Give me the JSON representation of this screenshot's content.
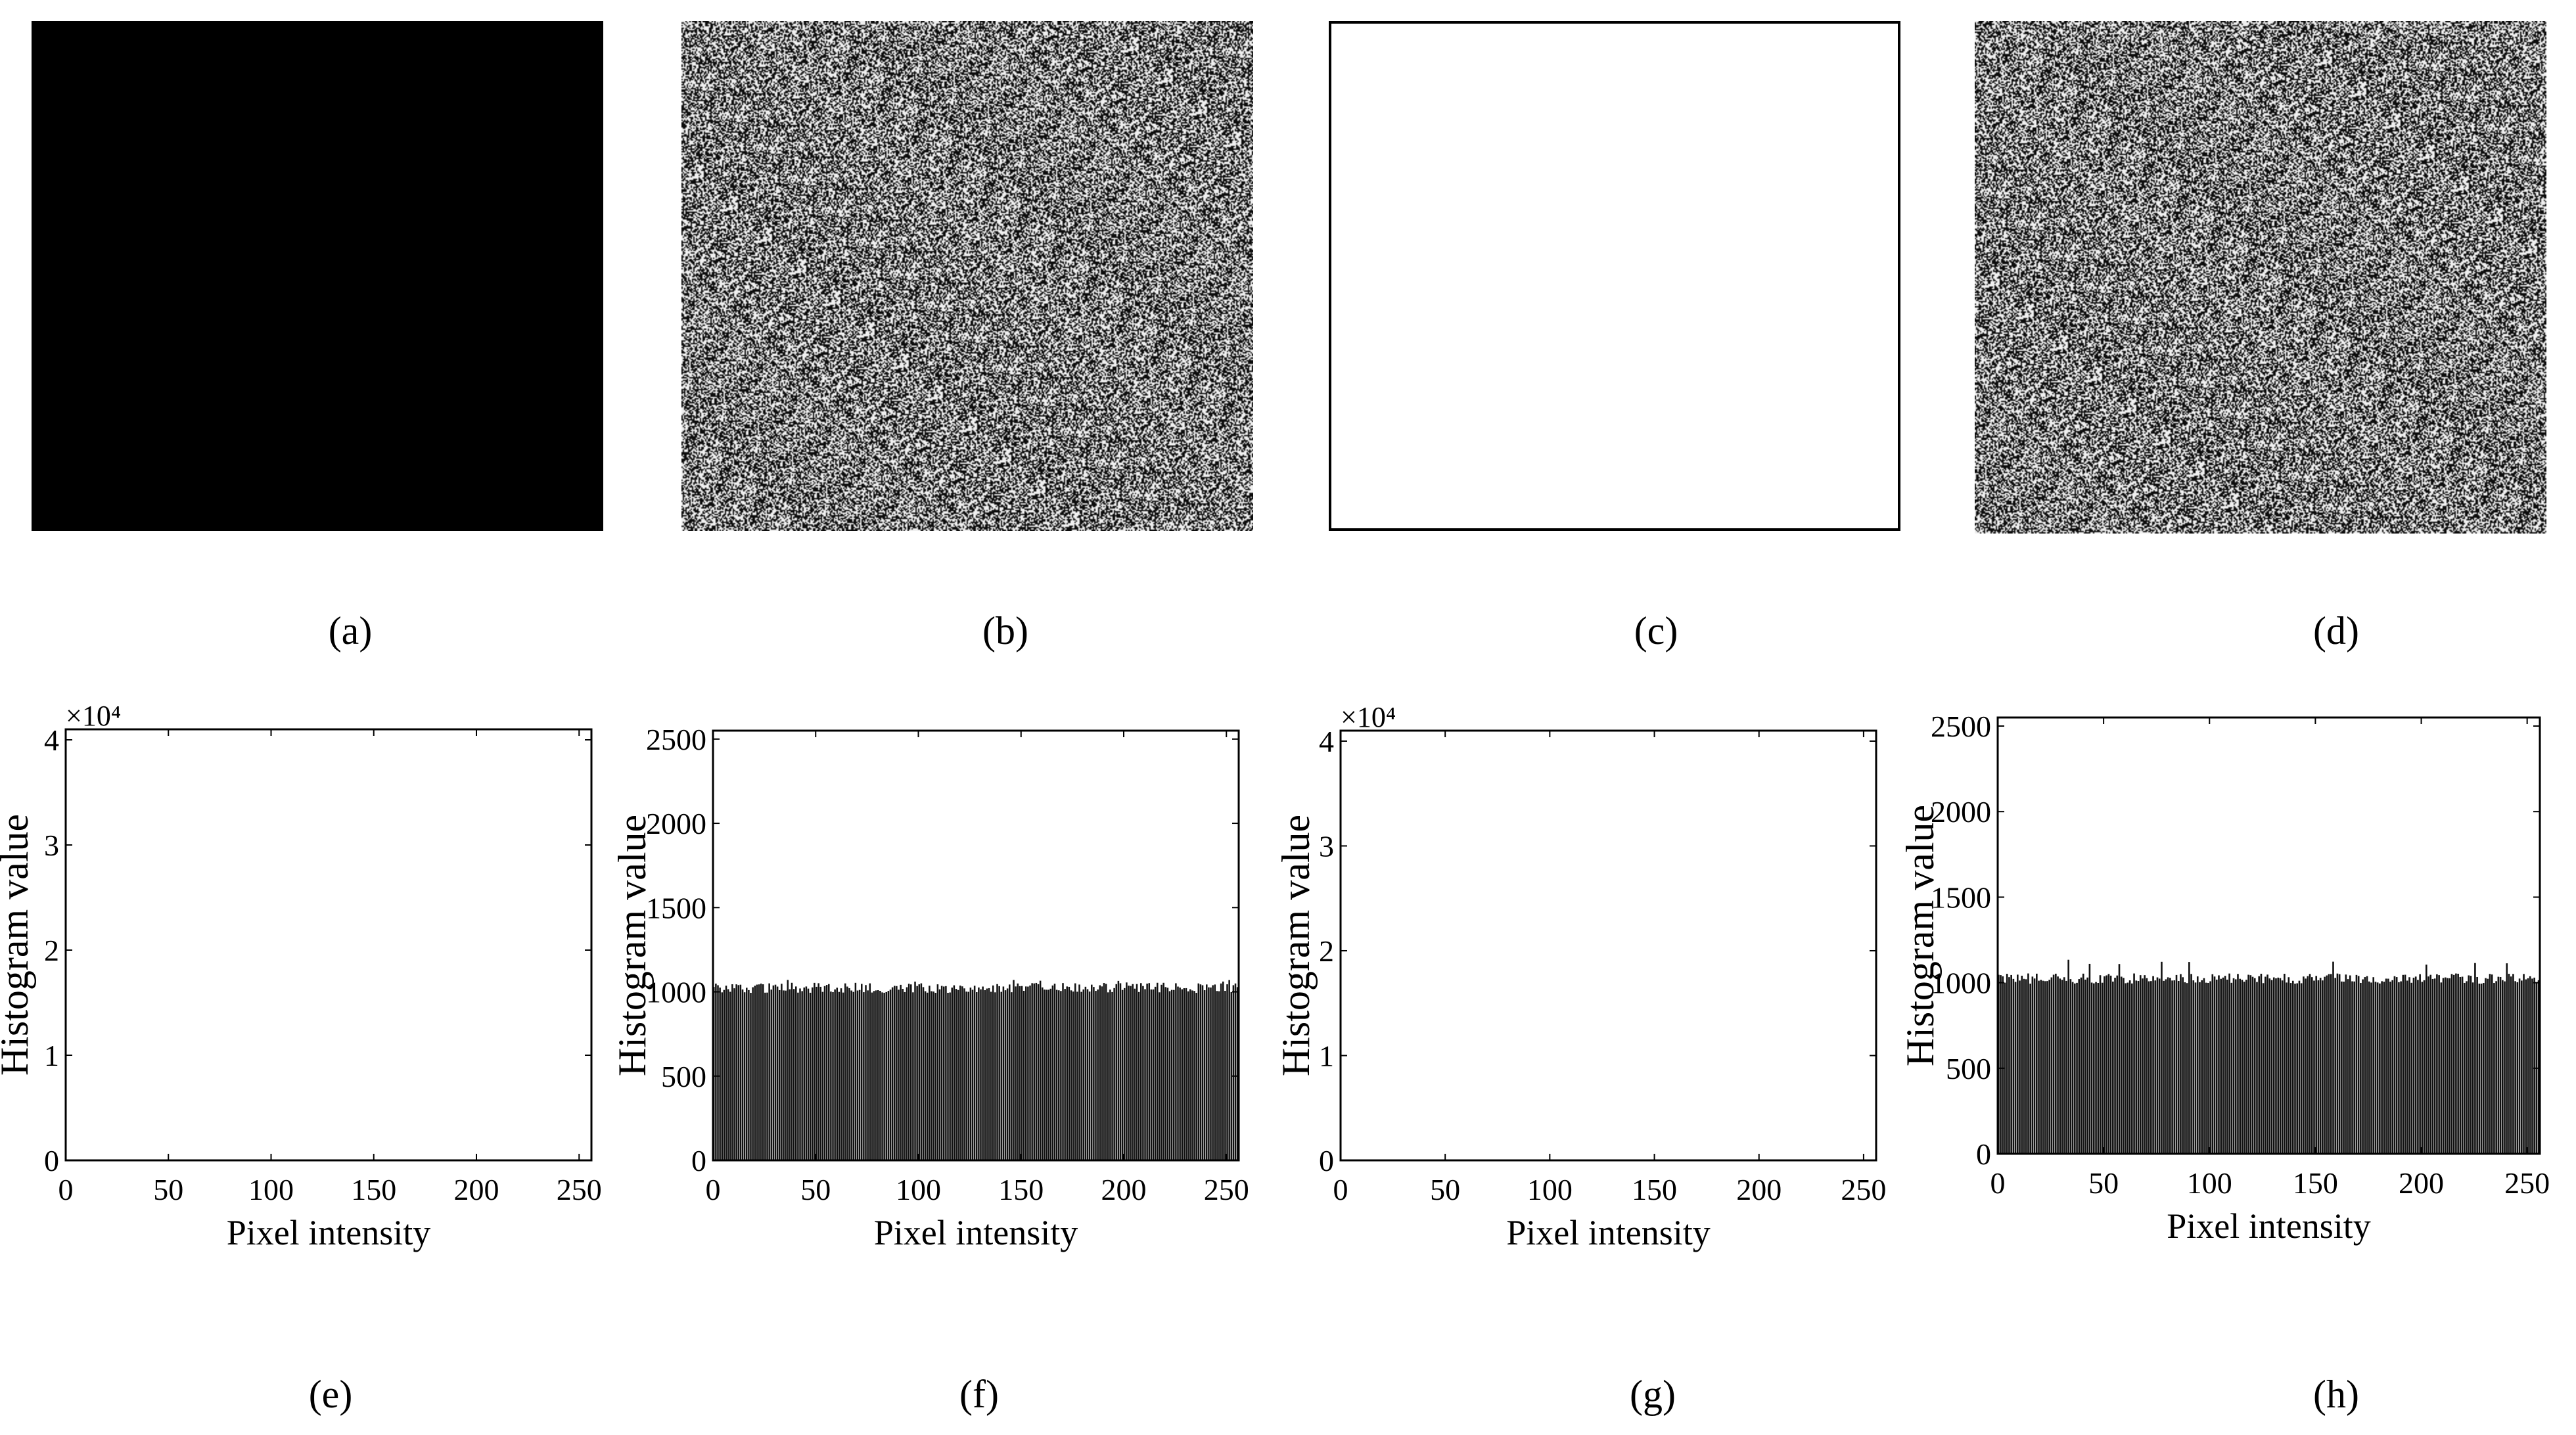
{
  "panels": {
    "a": {
      "caption": "(a)",
      "image": "all-black image"
    },
    "b": {
      "caption": "(b)",
      "image": "random noise image"
    },
    "c": {
      "caption": "(c)",
      "image": "all-white image"
    },
    "d": {
      "caption": "(d)",
      "image": "random noise image"
    },
    "e": {
      "caption": "(e)"
    },
    "f": {
      "caption": "(f)"
    },
    "g": {
      "caption": "(g)"
    },
    "h": {
      "caption": "(h)"
    }
  },
  "colors": {
    "background": "#ffffff",
    "ink": "#000000",
    "bars": "#111111"
  },
  "chart_data": [
    {
      "id": "e",
      "type": "bar",
      "xlabel": "Pixel intensity",
      "ylabel": "Histogram value",
      "xlim": [
        0,
        256
      ],
      "ylim": [
        0,
        4.1
      ],
      "xticks": [
        "0",
        "50",
        "100",
        "150",
        "200",
        "250"
      ],
      "yticks": [
        "0",
        "1",
        "2",
        "3",
        "4"
      ],
      "exponent": "×10⁴",
      "bars": "none visible",
      "grid": false
    },
    {
      "id": "f",
      "type": "bar",
      "xlabel": "Pixel intensity",
      "ylabel": "Histogram value",
      "xlim": [
        0,
        256
      ],
      "ylim": [
        0,
        2550
      ],
      "xticks": [
        "0",
        "50",
        "100",
        "150",
        "200",
        "250"
      ],
      "yticks": [
        "0",
        "500",
        "1000",
        "1500",
        "2000",
        "2500"
      ],
      "bins": 256,
      "mean_count": 1024,
      "count_range": [
        980,
        1075
      ],
      "grid": false
    },
    {
      "id": "g",
      "type": "bar",
      "xlabel": "Pixel intensity",
      "ylabel": "Histogram value",
      "xlim": [
        0,
        256
      ],
      "ylim": [
        0,
        4.1
      ],
      "xticks": [
        "0",
        "50",
        "100",
        "150",
        "200",
        "250"
      ],
      "yticks": [
        "0",
        "1",
        "2",
        "3",
        "4"
      ],
      "exponent": "×10⁴",
      "bars": "none visible",
      "grid": false
    },
    {
      "id": "h",
      "type": "bar",
      "xlabel": "Pixel intensity",
      "ylabel": "Histogram value",
      "xlim": [
        0,
        256
      ],
      "ylim": [
        0,
        2550
      ],
      "xticks": [
        "0",
        "50",
        "100",
        "150",
        "200",
        "250"
      ],
      "yticks": [
        "0",
        "500",
        "1000",
        "1500",
        "2000",
        "2500"
      ],
      "bins": 256,
      "mean_count": 1024,
      "count_range": [
        975,
        1135
      ],
      "grid": false
    }
  ]
}
